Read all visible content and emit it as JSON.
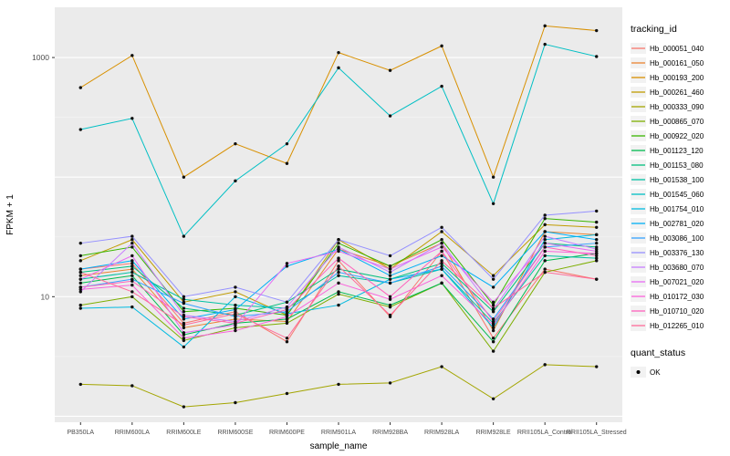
{
  "axes": {
    "x_label": "sample_name",
    "y_label": "FPKM + 1",
    "y_ticks": [
      {
        "value": 1000,
        "label": "1000"
      },
      {
        "value": 10,
        "label": "10"
      }
    ]
  },
  "legend": {
    "color_title": "tracking_id",
    "shape_title": "quant_status",
    "shape_items": [
      {
        "label": "OK",
        "marker": "point",
        "color": "#000000"
      }
    ]
  },
  "colors": {
    "panel_bg": "#EBEBEB",
    "grid_major": "#FFFFFF",
    "grid_minor": "#F6F6F6",
    "point": "#0f0f0f",
    "tick_text": "#4D4D4D",
    "axis_title_text": "#000000"
  },
  "chart_data": {
    "type": "line",
    "title": "",
    "xlabel": "sample_name",
    "ylabel": "FPKM + 1",
    "y_scale": "log10",
    "ylim": [
      0.9,
      2600
    ],
    "y_major_gridlines": [
      1,
      10,
      100,
      1000
    ],
    "y_minor_gridlines": [
      3.16,
      31.6,
      316
    ],
    "grid": true,
    "legend_position": "right",
    "point_color": "#0f0f0f",
    "categories": [
      "PB350LA",
      "RRIM600LA",
      "RRIM600LE",
      "RRIM600SE",
      "RRIM600PE",
      "RRIM901LA",
      "RRIM928BA",
      "RRIM928LA",
      "RRIM928LE",
      "RRII105LA_Control",
      "RRII105LA_Stressed"
    ],
    "series": [
      {
        "name": "Hb_000051_040",
        "color": "#F8766D",
        "values": [
          17,
          19,
          6,
          7.5,
          4.2,
          20,
          6.8,
          24,
          4.5,
          17,
          14
        ]
      },
      {
        "name": "Hb_000161_050",
        "color": "#EA8331",
        "values": [
          15,
          17,
          5.5,
          6.5,
          6.2,
          25,
          18,
          28,
          5.2,
          35,
          33
        ]
      },
      {
        "name": "Hb_000193_200",
        "color": "#D89000",
        "values": [
          560,
          1040,
          100,
          190,
          130,
          1100,
          780,
          1250,
          100,
          1840,
          1680
        ]
      },
      {
        "name": "Hb_000261_460",
        "color": "#C09B00",
        "values": [
          20,
          30,
          9,
          11,
          7,
          30,
          17,
          35,
          15,
          40,
          38
        ]
      },
      {
        "name": "Hb_000333_090",
        "color": "#A3A500",
        "values": [
          1.85,
          1.8,
          1.2,
          1.3,
          1.55,
          1.85,
          1.9,
          2.6,
          1.4,
          2.7,
          2.6
        ]
      },
      {
        "name": "Hb_000865_070",
        "color": "#7CAE00",
        "values": [
          8.5,
          10,
          4.3,
          5.5,
          6,
          10.5,
          8.2,
          13,
          3.5,
          16,
          20
        ]
      },
      {
        "name": "Hb_000922_020",
        "color": "#39B600",
        "values": [
          22,
          26,
          7.5,
          8,
          7,
          28,
          18,
          30,
          8.5,
          45,
          42
        ]
      },
      {
        "name": "Hb_001123_120",
        "color": "#00BB4E",
        "values": [
          13,
          15,
          4.8,
          6,
          6.5,
          11,
          8.5,
          13,
          4.2,
          20,
          23
        ]
      },
      {
        "name": "Hb_001153_080",
        "color": "#00BF7D",
        "values": [
          16,
          18,
          8,
          7,
          9,
          17,
          14,
          19,
          7.5,
          28,
          26
        ]
      },
      {
        "name": "Hb_001538_100",
        "color": "#00C1A3",
        "values": [
          14,
          16,
          9.5,
          8.5,
          8,
          15,
          13,
          17,
          6,
          22,
          21
        ]
      },
      {
        "name": "Hb_001545_060",
        "color": "#00BFC4",
        "values": [
          250,
          310,
          32,
          93,
          190,
          820,
          325,
          575,
          60,
          1290,
          1020
        ]
      },
      {
        "name": "Hb_001754_010",
        "color": "#00BAE0",
        "values": [
          8,
          8.2,
          3.8,
          10,
          7.2,
          8.5,
          14,
          17,
          5.5,
          30,
          33
        ]
      },
      {
        "name": "Hb_002781_020",
        "color": "#00B0F6",
        "values": [
          17,
          20,
          6.5,
          7.8,
          18,
          25,
          15,
          22,
          12,
          35,
          30
        ]
      },
      {
        "name": "Hb_003086_100",
        "color": "#35A2FF",
        "values": [
          12,
          14,
          8.8,
          6.8,
          7.5,
          16,
          13,
          18,
          6.5,
          26,
          28
        ]
      },
      {
        "name": "Hb_003376_130",
        "color": "#9590FF",
        "values": [
          28,
          32,
          10,
          12,
          9,
          30,
          22,
          38,
          14,
          48,
          52
        ]
      },
      {
        "name": "Hb_003680_070",
        "color": "#C77CFF",
        "values": [
          11,
          28,
          7,
          6.2,
          8.2,
          26,
          16,
          28,
          7.8,
          32,
          25
        ]
      },
      {
        "name": "Hb_007021_020",
        "color": "#E76BF3",
        "values": [
          14,
          22,
          5,
          5.8,
          19,
          24,
          17,
          26,
          9,
          28,
          24
        ]
      },
      {
        "name": "Hb_010172_030",
        "color": "#FA62DB",
        "values": [
          11.5,
          12.5,
          4.5,
          5.2,
          6.8,
          13,
          9.5,
          15,
          5.8,
          24,
          23
        ]
      },
      {
        "name": "Hb_010710_020",
        "color": "#FF62BC",
        "values": [
          12,
          13.5,
          6.8,
          6,
          7.8,
          21,
          10,
          24,
          6.2,
          26,
          22
        ]
      },
      {
        "name": "Hb_012265_010",
        "color": "#FF6A98",
        "values": [
          16,
          11,
          5.8,
          7.2,
          4.5,
          18,
          7,
          20,
          8,
          16,
          14
        ]
      }
    ]
  }
}
